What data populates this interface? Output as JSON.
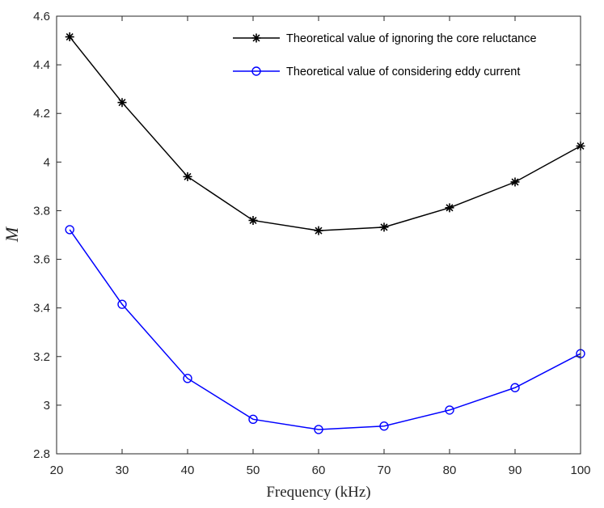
{
  "chart_data": {
    "type": "line",
    "title": "",
    "xlabel": "Frequency (kHz)",
    "ylabel": "M",
    "xlim": [
      20,
      100
    ],
    "ylim": [
      2.8,
      4.6
    ],
    "xticks": [
      20,
      30,
      40,
      50,
      60,
      70,
      80,
      90,
      100
    ],
    "xtick_labels": [
      "20",
      "30",
      "40",
      "50",
      "60",
      "70",
      "80",
      "90",
      "100"
    ],
    "yticks": [
      2.8,
      3.0,
      3.2,
      3.4,
      3.6,
      3.8,
      4.0,
      4.2,
      4.4,
      4.6
    ],
    "ytick_labels": [
      "2.8",
      "3",
      "3.2",
      "3.4",
      "3.6",
      "3.8",
      "4",
      "4.2",
      "4.4",
      "4.6"
    ],
    "legend_position": "top-right",
    "grid": false,
    "x": [
      22,
      30,
      40,
      50,
      60,
      70,
      80,
      90,
      100
    ],
    "series": [
      {
        "name": "Theoretical value of ignoring the core reluctance",
        "color": "#000000",
        "marker": "asterisk",
        "values": [
          4.515,
          4.245,
          3.94,
          3.76,
          3.718,
          3.732,
          3.812,
          3.918,
          4.066
        ]
      },
      {
        "name": "Theoretical value of considering eddy current",
        "color": "#0000ff",
        "marker": "circle",
        "values": [
          3.722,
          3.415,
          3.11,
          2.942,
          2.9,
          2.914,
          2.98,
          3.072,
          3.212
        ]
      }
    ]
  }
}
